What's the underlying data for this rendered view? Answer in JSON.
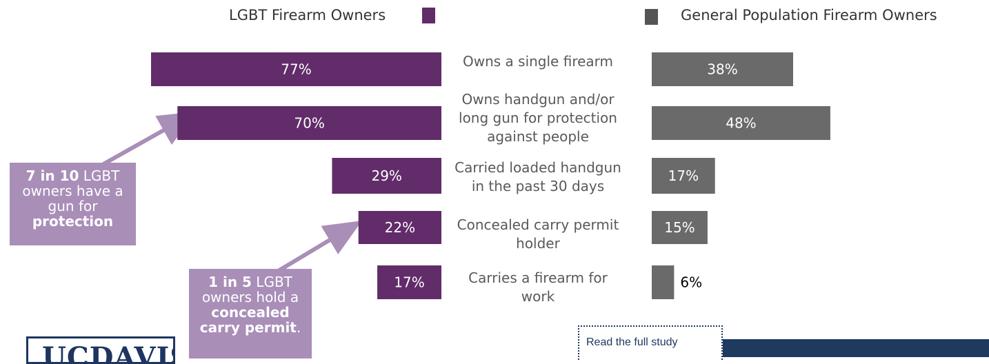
{
  "legend": {
    "lgbt": {
      "label": "LGBT Firearm Owners",
      "color": "#612c69"
    },
    "general": {
      "label": "General Population Firearm Owners",
      "color": "#555555"
    }
  },
  "chart_data": {
    "type": "bar",
    "orientation": "horizontal",
    "categories": [
      [
        "Owns a single firearm"
      ],
      [
        "Owns handgun and/or",
        "long gun for protection",
        "against people"
      ],
      [
        "Carried loaded handgun",
        "in the past 30 days"
      ],
      [
        "Concealed carry permit",
        "holder"
      ],
      [
        "Carries a firearm for",
        "work"
      ]
    ],
    "series": [
      {
        "name": "LGBT Firearm Owners",
        "color": "#612c69",
        "values": [
          77,
          70,
          29,
          22,
          17
        ],
        "labels": [
          "77%",
          "70%",
          "29%",
          "22%",
          "17%"
        ]
      },
      {
        "name": "General Population Firearm Owners",
        "color": "#6a6a6a",
        "values": [
          38,
          48,
          17,
          15,
          6
        ],
        "labels": [
          "38%",
          "48%",
          "17%",
          "15%",
          "6%"
        ]
      }
    ]
  },
  "callouts": {
    "protection": {
      "bold_a": "7 in 10",
      "text_a": " LGBT owners have a gun for ",
      "bold_b": "protection",
      "text_b": ""
    },
    "concealed": {
      "bold_a": "1 in 5",
      "text_a": " LGBT owners hold a ",
      "bold_b": "concealed carry permit",
      "text_b": "."
    }
  },
  "footer": {
    "logo": "UCDAVIS",
    "read_link": "Read the full study"
  }
}
